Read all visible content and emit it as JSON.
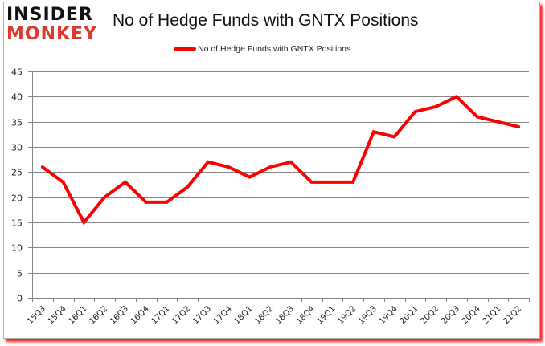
{
  "logo": {
    "line1": "INSIDER",
    "line2": "MONKEY"
  },
  "title": "No of Hedge Funds with GNTX Positions",
  "legend": {
    "label": "No of Hedge Funds with GNTX Positions",
    "color": "#ff0000"
  },
  "colors": {
    "line": "#ff0000",
    "grid": "#868686",
    "frame_shadow": "#ff2020"
  },
  "chart_data": {
    "type": "line",
    "title": "No of Hedge Funds with GNTX Positions",
    "xlabel": "",
    "ylabel": "",
    "ylim": [
      0,
      45
    ],
    "yticks": [
      0,
      5,
      10,
      15,
      20,
      25,
      30,
      35,
      40,
      45
    ],
    "grid": true,
    "legend_position": "top",
    "categories": [
      "15Q3",
      "15Q4",
      "16Q1",
      "16Q2",
      "16Q3",
      "16Q4",
      "17Q1",
      "17Q2",
      "17Q3",
      "17Q4",
      "18Q1",
      "18Q2",
      "18Q3",
      "18Q4",
      "19Q1",
      "19Q2",
      "19Q3",
      "19Q4",
      "20Q1",
      "20Q2",
      "20Q3",
      "20Q4",
      "21Q1",
      "21Q2"
    ],
    "series": [
      {
        "name": "No of Hedge Funds with GNTX Positions",
        "color": "#ff0000",
        "values": [
          26,
          23,
          15,
          20,
          23,
          19,
          19,
          22,
          27,
          26,
          24,
          26,
          27,
          23,
          23,
          23,
          33,
          32,
          37,
          38,
          40,
          36,
          35,
          34
        ]
      }
    ]
  }
}
